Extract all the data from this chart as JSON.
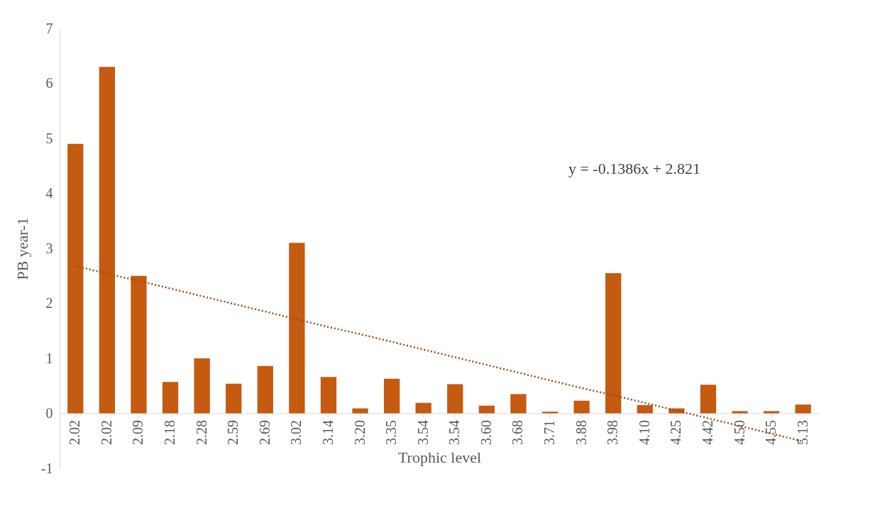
{
  "chart_data": {
    "type": "bar",
    "xlabel": "Trophic level",
    "ylabel": "PB year-1",
    "categories": [
      "2.02",
      "2.02",
      "2.09",
      "2.18",
      "2.28",
      "2.59",
      "2.69",
      "3.02",
      "3.14",
      "3.20",
      "3.35",
      "3.54",
      "3.54",
      "3.60",
      "3.68",
      "3.71",
      "3.88",
      "3.98",
      "4.10",
      "4.25",
      "4.42",
      "4.50",
      "4.55",
      "5.13"
    ],
    "series": [
      {
        "color": "#c55a11",
        "values": [
          4.9,
          6.3,
          2.5,
          0.57,
          1.0,
          0.54,
          0.86,
          3.1,
          0.66,
          0.09,
          0.63,
          0.19,
          0.53,
          0.14,
          0.35,
          0.03,
          0.23,
          2.55,
          0.15,
          0.09,
          0.52,
          0.04,
          0.04,
          0.16
        ]
      },
      {
        "type": "line",
        "line_style": "dotted",
        "color": "#9e4a10",
        "values": [
          2.68,
          2.54,
          2.41,
          2.27,
          2.13,
          1.99,
          1.85,
          1.71,
          1.57,
          1.44,
          1.3,
          1.16,
          1.02,
          0.88,
          0.74,
          0.6,
          0.46,
          0.33,
          0.19,
          0.05,
          -0.09,
          -0.23,
          -0.37,
          -0.51
        ]
      }
    ],
    "ylim": [
      -1,
      7
    ],
    "yticks": [
      -1,
      0,
      1,
      2,
      3,
      4,
      5,
      6,
      7
    ],
    "annotations": [
      "y = -0.1386x + 2.821"
    ]
  }
}
